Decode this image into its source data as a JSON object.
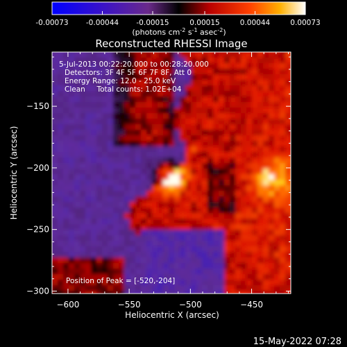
{
  "colorbar": {
    "ticks": [
      "-0.00073",
      "-0.00044",
      "-0.00015",
      "0.00015",
      "0.00044",
      "0.00073"
    ],
    "tick_values": [
      -0.00073,
      -0.00044,
      -0.00015,
      0.00015,
      0.00044,
      0.00073
    ],
    "range": [
      -0.00073,
      0.00073
    ],
    "units_main": "(photons cm",
    "units_exp1": "-2",
    "units_mid": " s",
    "units_exp2": "-1",
    "units_end": " asec",
    "units_exp3": "-2",
    "units_close": ")"
  },
  "chart_data": {
    "type": "heatmap",
    "title": "Reconstructed RHESSI Image",
    "xlabel": "Heliocentric X (arcsec)",
    "ylabel": "Heliocentric Y (arcsec)",
    "xlim": [
      -613,
      -418
    ],
    "ylim": [
      -302,
      -106
    ],
    "x_ticks": [
      -600,
      -550,
      -500,
      -450
    ],
    "y_ticks": [
      -150,
      -200,
      -250,
      -300
    ],
    "colormap": "RHESSI red-temperature (blue→purple→black→red→orange→yellow→white)",
    "peak": {
      "x": -520,
      "y": -204
    },
    "annotations": [
      "5-Jul-2013 00:22:20.000 to 00:28:20.000",
      "Detectors: 3F 4F 5F 6F 7F 8F, Att 0",
      "Energy Range: 12.0 - 25.0 keV",
      "Clean     Total counts: 1.02E+04"
    ],
    "peak_label": "Position of Peak = [-520,-204]"
  },
  "footer": {
    "timestamp": "15-May-2022 07:28"
  }
}
